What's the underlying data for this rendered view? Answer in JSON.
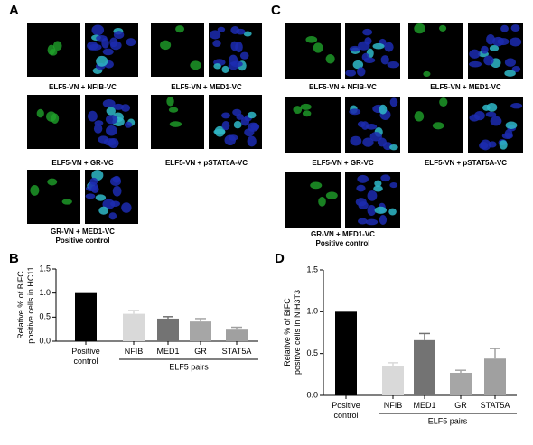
{
  "panels": [
    "A",
    "B",
    "C",
    "D"
  ],
  "images": {
    "A": [
      {
        "label": "ELF5-VN + NFIB-VC"
      },
      {
        "label": "ELF5-VN + MED1-VC"
      },
      {
        "label": "ELF5-VN + GR-VC"
      },
      {
        "label": "ELF5-VN + pSTAT5A-VC"
      },
      {
        "label": "GR-VN + MED1-VC",
        "note": "Positive control"
      }
    ],
    "C": [
      {
        "label": "ELF5-VN + NFIB-VC"
      },
      {
        "label": "ELF5-VN + MED1-VC"
      },
      {
        "label": "ELF5-VN + GR-VC"
      },
      {
        "label": "ELF5-VN + pSTAT5A-VC"
      },
      {
        "label": "GR-VN + MED1-VC",
        "note": "Positive control"
      }
    ]
  },
  "chart_data": [
    {
      "type": "bar",
      "ylabel": "Relative % of BiFC positive cells in HC11",
      "xlabel": "ELF5 pairs",
      "categories": [
        "Positive control",
        "NFIB",
        "MED1",
        "GR",
        "STAT5A"
      ],
      "values": [
        1.0,
        0.57,
        0.47,
        0.41,
        0.24
      ],
      "errors": [
        0,
        0.07,
        0.04,
        0.06,
        0.05
      ],
      "colors": [
        "#000000",
        "#d9d9d9",
        "#737373",
        "#a6a6a6",
        "#a0a0a0"
      ],
      "ylim": [
        0,
        1.5
      ],
      "yticks": [
        {
          "value": 0,
          "label": "0.0"
        },
        0.5,
        {
          "value": 1,
          "label": "1.0"
        },
        1.5
      ]
    },
    {
      "type": "bar",
      "ylabel": "Relative % of BiFC positive cells in NIH3T3",
      "xlabel": "ELF5 pairs",
      "categories": [
        "Positive control",
        "NFIB",
        "MED1",
        "GR",
        "STAT5A"
      ],
      "values": [
        1.0,
        0.35,
        0.66,
        0.27,
        0.44
      ],
      "errors": [
        0,
        0.04,
        0.08,
        0.03,
        0.12
      ],
      "colors": [
        "#000000",
        "#d9d9d9",
        "#737373",
        "#a6a6a6",
        "#a0a0a0"
      ],
      "ylim": [
        0,
        1.5
      ],
      "yticks": [
        {
          "value": 0,
          "label": "0.0"
        },
        0.5,
        {
          "value": 1,
          "label": "1.0"
        },
        1.5
      ]
    }
  ]
}
